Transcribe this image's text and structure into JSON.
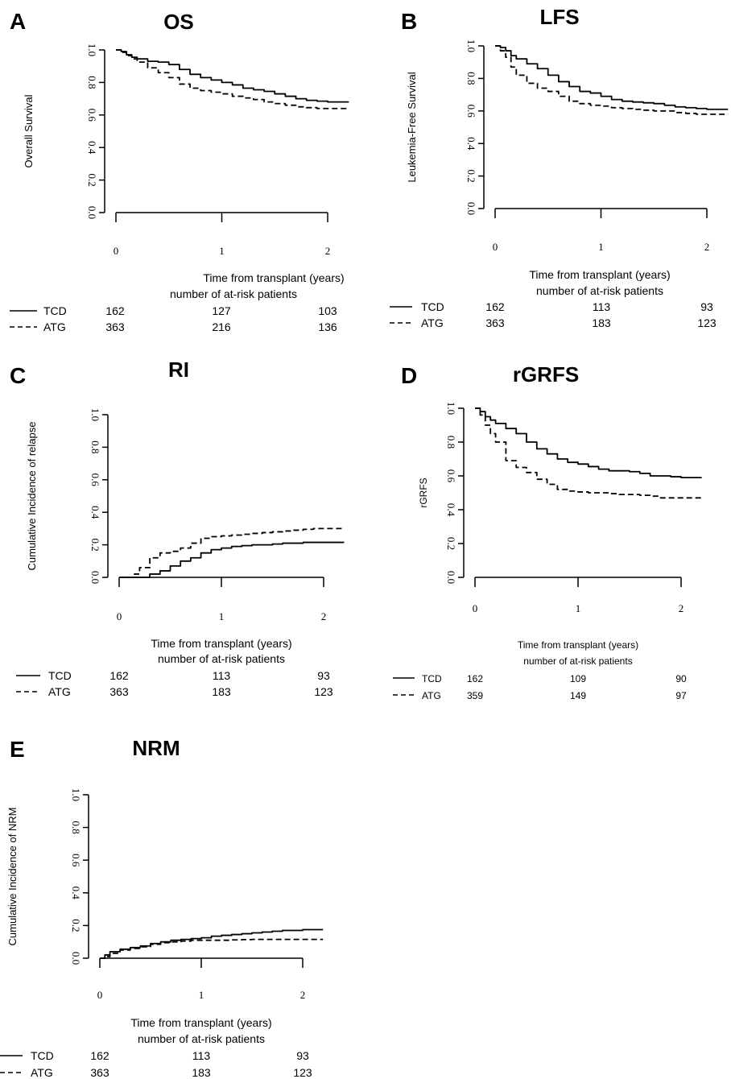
{
  "figure": {
    "x_unit_label": "Time from transplant (years)",
    "at_risk_header": "number of at-risk patients"
  },
  "chart_data": [
    {
      "type": "line",
      "panel_letter": "A",
      "title": "OS",
      "xlabel": "Time from transplant (years)",
      "ylabel": "Overall Survival",
      "xlim": [
        0,
        2.2
      ],
      "ylim": [
        0,
        1.0
      ],
      "x_ticks": [
        "0",
        "1",
        "2"
      ],
      "y_ticks": [
        "0.0",
        "0.2",
        "0.4",
        "0.6",
        "0.8",
        "1.0"
      ],
      "series": [
        {
          "name": "TCD",
          "dash": "solid",
          "x": [
            0,
            0.05,
            0.1,
            0.15,
            0.2,
            0.3,
            0.4,
            0.5,
            0.6,
            0.7,
            0.8,
            0.9,
            1.0,
            1.1,
            1.2,
            1.3,
            1.4,
            1.5,
            1.6,
            1.7,
            1.8,
            1.9,
            2.0,
            2.2
          ],
          "y": [
            1.0,
            0.99,
            0.97,
            0.955,
            0.945,
            0.93,
            0.925,
            0.91,
            0.88,
            0.85,
            0.83,
            0.815,
            0.8,
            0.785,
            0.765,
            0.755,
            0.745,
            0.73,
            0.715,
            0.7,
            0.69,
            0.685,
            0.68,
            0.68
          ]
        },
        {
          "name": "ATG",
          "dash": "dashed",
          "x": [
            0,
            0.05,
            0.1,
            0.15,
            0.2,
            0.3,
            0.4,
            0.5,
            0.6,
            0.7,
            0.8,
            0.9,
            1.0,
            1.1,
            1.2,
            1.3,
            1.4,
            1.5,
            1.6,
            1.7,
            1.8,
            1.9,
            2.0,
            2.2
          ],
          "y": [
            1.0,
            0.985,
            0.965,
            0.945,
            0.925,
            0.89,
            0.86,
            0.83,
            0.79,
            0.765,
            0.75,
            0.74,
            0.73,
            0.715,
            0.705,
            0.695,
            0.68,
            0.67,
            0.66,
            0.65,
            0.645,
            0.64,
            0.64,
            0.64
          ]
        }
      ],
      "at_risk": {
        "x": [
          0,
          1,
          2
        ],
        "rows": [
          {
            "name": "TCD",
            "dash": "solid",
            "values": [
              162,
              127,
              103
            ]
          },
          {
            "name": "ATG",
            "dash": "dashed",
            "values": [
              363,
              216,
              136
            ]
          }
        ]
      }
    },
    {
      "type": "line",
      "panel_letter": "B",
      "title": "LFS",
      "xlabel": "Time from transplant (years)",
      "ylabel": "Leukemia-Free Survival",
      "xlim": [
        0,
        2.2
      ],
      "ylim": [
        0,
        1.0
      ],
      "x_ticks": [
        "0",
        "1",
        "2"
      ],
      "y_ticks": [
        "0.0",
        "0.2",
        "0.4",
        "0.6",
        "0.8",
        "1.0"
      ],
      "series": [
        {
          "name": "TCD",
          "dash": "solid",
          "x": [
            0,
            0.05,
            0.1,
            0.15,
            0.2,
            0.3,
            0.4,
            0.5,
            0.6,
            0.7,
            0.8,
            0.9,
            1.0,
            1.1,
            1.2,
            1.3,
            1.4,
            1.5,
            1.6,
            1.7,
            1.8,
            1.9,
            2.0,
            2.2
          ],
          "y": [
            1.0,
            0.99,
            0.97,
            0.94,
            0.92,
            0.89,
            0.86,
            0.82,
            0.78,
            0.75,
            0.72,
            0.71,
            0.69,
            0.67,
            0.66,
            0.655,
            0.65,
            0.645,
            0.635,
            0.625,
            0.62,
            0.615,
            0.61,
            0.61
          ]
        },
        {
          "name": "ATG",
          "dash": "dashed",
          "x": [
            0,
            0.05,
            0.1,
            0.15,
            0.2,
            0.3,
            0.4,
            0.5,
            0.6,
            0.7,
            0.8,
            0.9,
            1.0,
            1.1,
            1.2,
            1.3,
            1.4,
            1.5,
            1.6,
            1.7,
            1.8,
            1.9,
            2.0,
            2.2
          ],
          "y": [
            1.0,
            0.97,
            0.93,
            0.87,
            0.82,
            0.77,
            0.74,
            0.72,
            0.69,
            0.66,
            0.645,
            0.635,
            0.63,
            0.62,
            0.615,
            0.61,
            0.605,
            0.6,
            0.6,
            0.59,
            0.585,
            0.58,
            0.58,
            0.58
          ]
        }
      ],
      "at_risk": {
        "x": [
          0,
          1,
          2
        ],
        "rows": [
          {
            "name": "TCD",
            "dash": "solid",
            "values": [
              162,
              113,
              93
            ]
          },
          {
            "name": "ATG",
            "dash": "dashed",
            "values": [
              363,
              183,
              123
            ]
          }
        ]
      }
    },
    {
      "type": "line",
      "panel_letter": "C",
      "title": "RI",
      "xlabel": "Time from transplant (years)",
      "ylabel": "Cumulative Incidence of relapse",
      "xlim": [
        0,
        2.2
      ],
      "ylim": [
        0,
        1.0
      ],
      "x_ticks": [
        "0",
        "1",
        "2"
      ],
      "y_ticks": [
        "0.0",
        "0.2",
        "0.4",
        "0.6",
        "0.8",
        "1.0"
      ],
      "series": [
        {
          "name": "TCD",
          "dash": "solid",
          "x": [
            0,
            0.1,
            0.2,
            0.3,
            0.4,
            0.5,
            0.6,
            0.7,
            0.8,
            0.9,
            1.0,
            1.1,
            1.2,
            1.3,
            1.4,
            1.5,
            1.6,
            1.7,
            1.8,
            1.9,
            2.0,
            2.2
          ],
          "y": [
            0.0,
            0.0,
            0.0,
            0.02,
            0.04,
            0.07,
            0.1,
            0.12,
            0.15,
            0.17,
            0.18,
            0.19,
            0.195,
            0.2,
            0.2,
            0.205,
            0.21,
            0.21,
            0.215,
            0.215,
            0.215,
            0.215
          ]
        },
        {
          "name": "ATG",
          "dash": "dashed",
          "x": [
            0,
            0.1,
            0.15,
            0.2,
            0.3,
            0.4,
            0.5,
            0.6,
            0.7,
            0.8,
            0.9,
            1.0,
            1.1,
            1.2,
            1.3,
            1.4,
            1.5,
            1.6,
            1.7,
            1.8,
            1.9,
            2.0,
            2.2
          ],
          "y": [
            0.0,
            0.0,
            0.02,
            0.06,
            0.12,
            0.15,
            0.16,
            0.18,
            0.21,
            0.24,
            0.25,
            0.255,
            0.26,
            0.265,
            0.27,
            0.275,
            0.28,
            0.285,
            0.29,
            0.295,
            0.3,
            0.3,
            0.3
          ]
        }
      ],
      "at_risk": {
        "x": [
          0,
          1,
          2
        ],
        "rows": [
          {
            "name": "TCD",
            "dash": "solid",
            "values": [
              162,
              113,
              93
            ]
          },
          {
            "name": "ATG",
            "dash": "dashed",
            "values": [
              363,
              183,
              123
            ]
          }
        ]
      }
    },
    {
      "type": "line",
      "panel_letter": "D",
      "title": "rGRFS",
      "xlabel": "Time from transplant (years)",
      "ylabel": "rGRFS",
      "xlim": [
        0,
        2.2
      ],
      "ylim": [
        0,
        1.0
      ],
      "x_ticks": [
        "0",
        "1",
        "2"
      ],
      "y_ticks": [
        "0.0",
        "0.2",
        "0.4",
        "0.6",
        "0.8",
        "1.0"
      ],
      "series": [
        {
          "name": "TCD",
          "dash": "solid",
          "x": [
            0,
            0.05,
            0.1,
            0.15,
            0.2,
            0.3,
            0.4,
            0.5,
            0.6,
            0.7,
            0.8,
            0.9,
            1.0,
            1.1,
            1.2,
            1.3,
            1.4,
            1.5,
            1.6,
            1.7,
            1.8,
            1.9,
            2.0,
            2.2
          ],
          "y": [
            1.0,
            0.98,
            0.95,
            0.93,
            0.91,
            0.88,
            0.85,
            0.8,
            0.76,
            0.73,
            0.7,
            0.68,
            0.67,
            0.655,
            0.64,
            0.63,
            0.63,
            0.625,
            0.615,
            0.6,
            0.6,
            0.595,
            0.59,
            0.59
          ]
        },
        {
          "name": "ATG",
          "dash": "dashed",
          "x": [
            0,
            0.05,
            0.1,
            0.15,
            0.2,
            0.3,
            0.4,
            0.5,
            0.6,
            0.7,
            0.8,
            0.9,
            1.0,
            1.1,
            1.2,
            1.3,
            1.4,
            1.5,
            1.6,
            1.7,
            1.8,
            1.9,
            2.0,
            2.2
          ],
          "y": [
            1.0,
            0.96,
            0.9,
            0.85,
            0.8,
            0.69,
            0.65,
            0.62,
            0.58,
            0.55,
            0.52,
            0.51,
            0.505,
            0.5,
            0.5,
            0.495,
            0.49,
            0.49,
            0.485,
            0.48,
            0.47,
            0.47,
            0.47,
            0.47
          ]
        }
      ],
      "at_risk": {
        "x": [
          0,
          1,
          2
        ],
        "rows": [
          {
            "name": "TCD",
            "dash": "solid",
            "values": [
              162,
              109,
              90
            ]
          },
          {
            "name": "ATG",
            "dash": "dashed",
            "values": [
              359,
              149,
              97
            ]
          }
        ]
      }
    },
    {
      "type": "line",
      "panel_letter": "E",
      "title": "NRM",
      "xlabel": "Time from transplant (years)",
      "ylabel": "Cumulative Incidence of NRM",
      "xlim": [
        0,
        2.2
      ],
      "ylim": [
        0,
        1.0
      ],
      "x_ticks": [
        "0",
        "1",
        "2"
      ],
      "y_ticks": [
        "0.0",
        "0.2",
        "0.4",
        "0.6",
        "0.8",
        "1.0"
      ],
      "series": [
        {
          "name": "TCD",
          "dash": "solid",
          "x": [
            0,
            0.05,
            0.1,
            0.2,
            0.3,
            0.4,
            0.5,
            0.6,
            0.7,
            0.8,
            0.9,
            1.0,
            1.1,
            1.2,
            1.3,
            1.4,
            1.5,
            1.6,
            1.7,
            1.8,
            1.9,
            2.0,
            2.2
          ],
          "y": [
            0.0,
            0.02,
            0.04,
            0.055,
            0.065,
            0.075,
            0.09,
            0.1,
            0.11,
            0.115,
            0.12,
            0.125,
            0.135,
            0.14,
            0.145,
            0.15,
            0.155,
            0.16,
            0.165,
            0.17,
            0.17,
            0.175,
            0.175
          ]
        },
        {
          "name": "ATG",
          "dash": "dashed",
          "x": [
            0,
            0.05,
            0.1,
            0.2,
            0.3,
            0.4,
            0.5,
            0.6,
            0.7,
            0.8,
            0.9,
            1.0,
            1.1,
            1.2,
            1.3,
            1.4,
            1.5,
            1.6,
            1.7,
            1.8,
            1.9,
            2.0,
            2.2
          ],
          "y": [
            0.0,
            0.01,
            0.03,
            0.05,
            0.06,
            0.07,
            0.085,
            0.095,
            0.1,
            0.105,
            0.11,
            0.11,
            0.11,
            0.11,
            0.112,
            0.114,
            0.115,
            0.115,
            0.115,
            0.115,
            0.115,
            0.115,
            0.115
          ]
        }
      ],
      "at_risk": {
        "x": [
          0,
          1,
          2
        ],
        "rows": [
          {
            "name": "TCD",
            "dash": "solid",
            "values": [
              162,
              113,
              93
            ]
          },
          {
            "name": "ATG",
            "dash": "dashed",
            "values": [
              363,
              183,
              123
            ]
          }
        ]
      }
    }
  ]
}
